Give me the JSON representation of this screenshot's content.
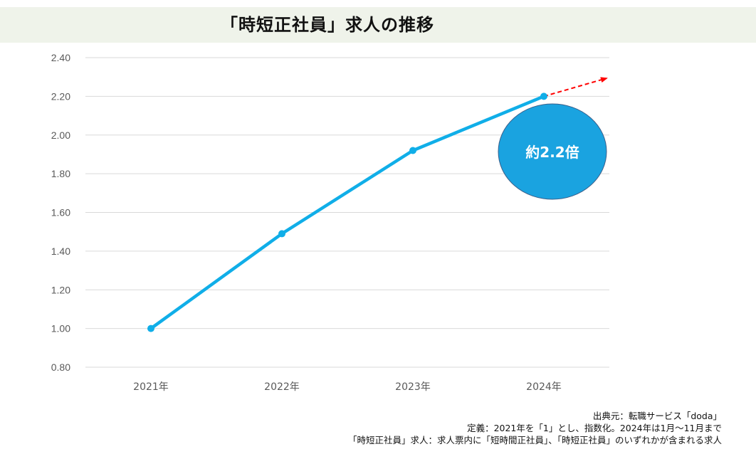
{
  "title": "「時短正社員」求人の推移",
  "chart_data": {
    "type": "line",
    "categories": [
      "2021年",
      "2022年",
      "2023年",
      "2024年"
    ],
    "series": [
      {
        "values": [
          1.0,
          1.49,
          1.92,
          2.2
        ]
      }
    ],
    "ylim": [
      0.8,
      2.4
    ],
    "yticks": [
      "0.80",
      "1.00",
      "1.20",
      "1.40",
      "1.60",
      "1.80",
      "2.00",
      "2.20",
      "2.40"
    ],
    "grid": true,
    "annotation": "約2.2倍",
    "colors": {
      "line": "#10aee8",
      "bubble": "#1aa3e0",
      "trend": "#ff0000",
      "grid": "#d9d9d9",
      "tick_text": "#595959"
    }
  },
  "notes": {
    "source": "出典元：転職サービス「doda」",
    "definition": "定義：2021年を「1」とし、指数化。2024年は1月～11月まで",
    "criteria": "「時短正社員」求人：求人票内に「短時間正社員」、「時短正社員」のいずれかが含まれる求人"
  }
}
